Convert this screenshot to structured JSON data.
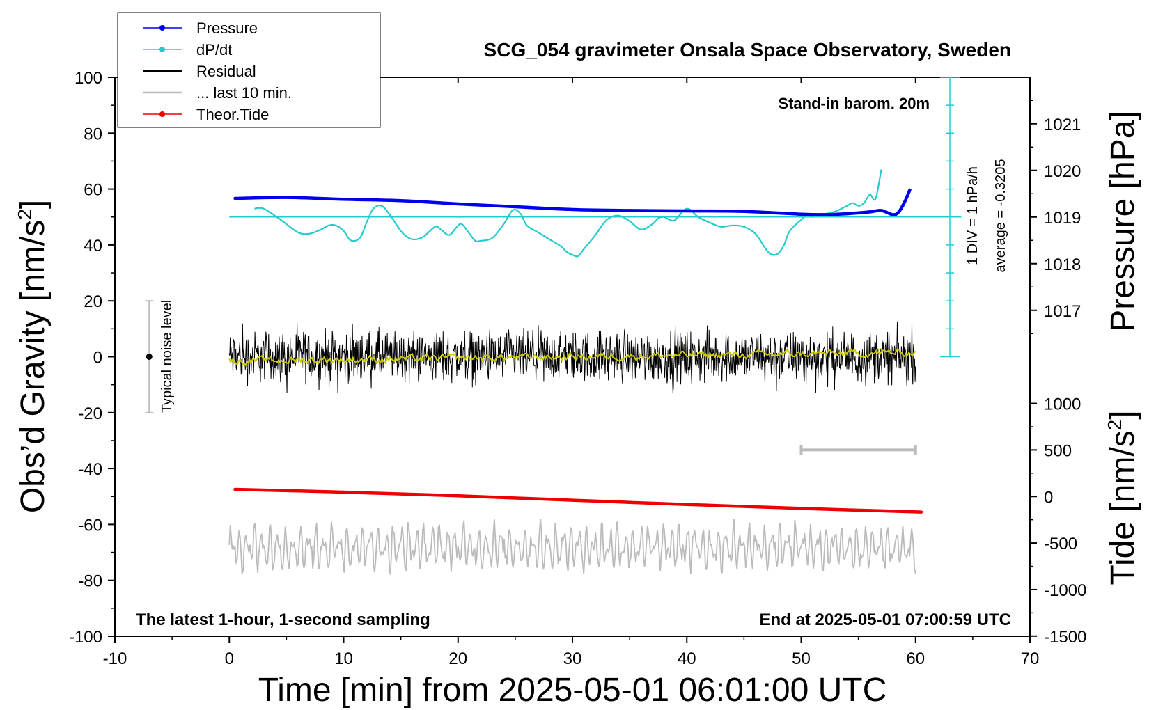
{
  "chart_data": {
    "type": "line",
    "title": "SCG_054 gravimeter Onsala Space Observatory, Sweden",
    "subtitle": "Stand-in barom. 20m",
    "xlabel": "Time [min] from 2025-05-01 06:01:00 UTC",
    "ylabel_left": "Obs’d Gravity [nm/s²]",
    "ylabel_right_pressure": "Pressure [hPa]",
    "ylabel_right_tide": "Tide [nm/s²]",
    "footer_left": "The latest 1-hour, 1-second sampling",
    "footer_right": "End at 2025-05-01 07:00:59 UTC",
    "noise_label": "Typical noise level",
    "dpdt_scale_label": "1 DIV = 1 hPa/h",
    "dpdt_average_label": "average = -0.3205",
    "xlim": [
      -10,
      70
    ],
    "ylim": [
      -100,
      100
    ],
    "pressure_lim": [
      1015.8,
      1022
    ],
    "tide_lim": [
      -1500,
      1500
    ],
    "grid": false,
    "legend_position": "top-left",
    "x_ticks": [
      "-10",
      "0",
      "10",
      "20",
      "30",
      "40",
      "50",
      "60",
      "70"
    ],
    "y_ticks": [
      "100",
      "80",
      "60",
      "40",
      "20",
      "0",
      "-20",
      "-40",
      "-60",
      "-80",
      "-100"
    ],
    "pressure_ticks": [
      "1021",
      "1020",
      "1019",
      "1018",
      "1017"
    ],
    "tide_ticks": [
      "1000",
      "500",
      "0",
      "-500",
      "-1000",
      "-1500"
    ],
    "legend": [
      {
        "label": "Pressure",
        "color": "#0000ee",
        "marker": true
      },
      {
        "label": "dP/dt",
        "color": "#22cccc",
        "marker": true
      },
      {
        "label": "Residual",
        "color": "#000000",
        "marker": false
      },
      {
        "label": "... last 10 min.",
        "color": "#bbbbbb",
        "marker": false
      },
      {
        "label": "Theor.Tide",
        "color": "#ee0000",
        "marker": true
      }
    ],
    "series": [
      {
        "name": "Pressure",
        "axis": "pressure_hPa",
        "color": "#0000ee",
        "x": [
          0.5,
          5,
          10,
          15,
          20,
          25,
          30,
          35,
          40,
          45,
          50,
          52,
          54,
          56,
          57,
          58,
          58.5,
          59,
          59.5
        ],
        "y": [
          1019.4,
          1019.42,
          1019.38,
          1019.35,
          1019.28,
          1019.22,
          1019.16,
          1019.14,
          1019.13,
          1019.12,
          1019.06,
          1019.05,
          1019.07,
          1019.11,
          1019.14,
          1019.05,
          1019.1,
          1019.3,
          1019.58
        ]
      },
      {
        "name": "dP/dt",
        "axis": "dpdt_div",
        "color": "#22cccc",
        "baseline_y": 50,
        "x": [
          2.2,
          3,
          4.5,
          6,
          7,
          8,
          8.7,
          9.3,
          10,
          10.5,
          11,
          11.5,
          12,
          12.6,
          13.3,
          14,
          15,
          15.7,
          16.3,
          17,
          18,
          18.5,
          19.2,
          19.8,
          20.3,
          21,
          21.5,
          22,
          23,
          24,
          24.8,
          25.5,
          26,
          27,
          28,
          29,
          29.5,
          30,
          30.5,
          31,
          32,
          33,
          34,
          35,
          36,
          37,
          37.5,
          38,
          38.5,
          39,
          40,
          41,
          42,
          43,
          44,
          45,
          46,
          47,
          47.5,
          48,
          48.5,
          49,
          50,
          50.5,
          51,
          52,
          53,
          54,
          54.5,
          55,
          55.5,
          56,
          56.5,
          57
        ],
        "y": [
          53,
          53,
          49,
          44.5,
          44,
          45.5,
          47,
          47,
          45,
          42,
          41.5,
          43,
          48,
          53,
          54,
          51,
          45,
          42.5,
          42,
          43,
          46.5,
          45.5,
          43.5,
          46,
          47.5,
          44,
          41.5,
          41.5,
          42.5,
          47.5,
          52.5,
          51,
          47,
          44.5,
          42,
          39.5,
          37.5,
          36.5,
          36,
          38.5,
          43.5,
          49,
          50.5,
          48.5,
          45.5,
          47.5,
          49.5,
          50,
          49,
          49,
          53,
          50,
          48,
          46.5,
          47,
          46.5,
          44,
          38,
          36.5,
          37,
          40,
          45,
          49,
          50.5,
          50,
          51,
          52,
          54,
          55,
          54,
          55,
          58,
          56.5,
          67
        ]
      },
      {
        "name": "Residual",
        "axis": "gravity",
        "color": "#000000",
        "x_range": [
          0,
          60
        ],
        "amplitude_range": [
          -13,
          13
        ],
        "mean": 0
      },
      {
        "name": "Residual (smoothed)",
        "axis": "gravity",
        "color": "#cccc00",
        "x_range": [
          0,
          60
        ],
        "mean": 0
      },
      {
        "name": "... last 10 min.",
        "axis": "tide",
        "color": "#bbbbbb",
        "x_range": [
          0,
          60
        ],
        "tide_range": [
          -870,
          -220
        ]
      },
      {
        "name": "Theor.Tide",
        "axis": "tide",
        "color": "#ee0000",
        "x": [
          0.5,
          10,
          20,
          30,
          40,
          50,
          60.5
        ],
        "y": [
          77,
          47,
          7,
          -40,
          -86,
          -128,
          -167
        ]
      }
    ],
    "noise_bar": {
      "x": -7,
      "y_min": -20,
      "y_max": 20,
      "center": 0
    },
    "last10_bar": {
      "x_start": 50,
      "x_end": 60,
      "tide_value": 500
    }
  }
}
